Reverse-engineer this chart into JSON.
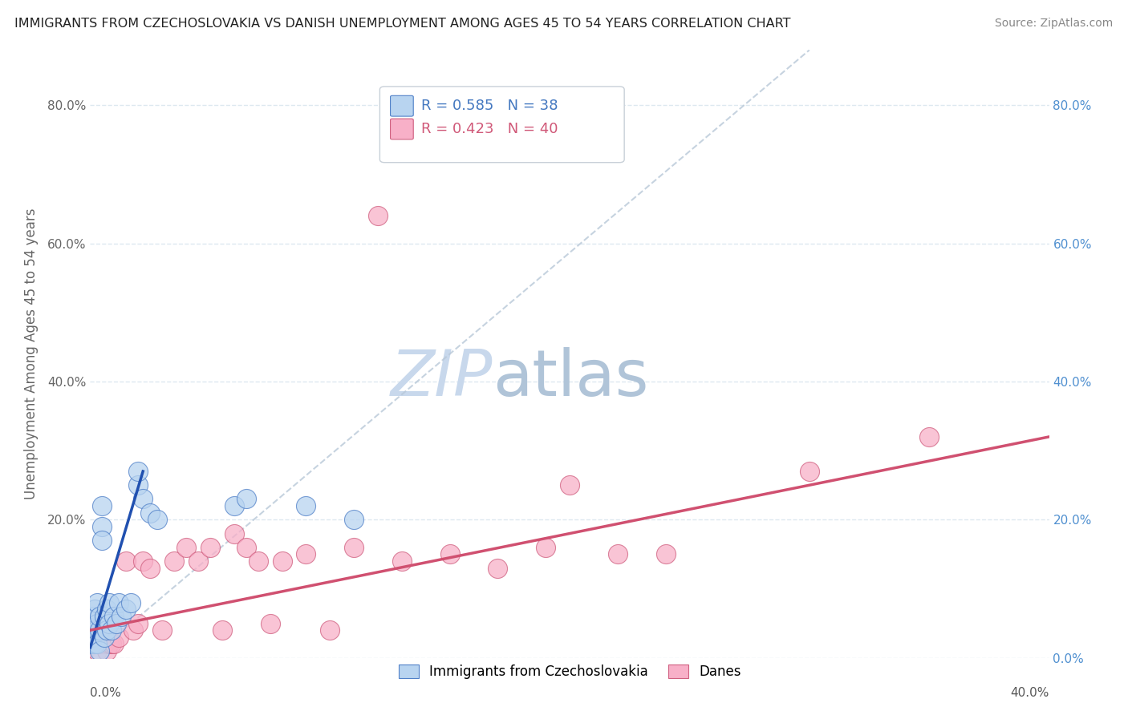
{
  "title": "IMMIGRANTS FROM CZECHOSLOVAKIA VS DANISH UNEMPLOYMENT AMONG AGES 45 TO 54 YEARS CORRELATION CHART",
  "source": "Source: ZipAtlas.com",
  "ylabel": "Unemployment Among Ages 45 to 54 years",
  "yticks_left": [
    "",
    "20.0%",
    "40.0%",
    "60.0%",
    "80.0%"
  ],
  "yticks_right": [
    "0.0%",
    "20.0%",
    "40.0%",
    "60.0%",
    "80.0%"
  ],
  "ytick_vals": [
    0.0,
    0.2,
    0.4,
    0.6,
    0.8
  ],
  "legend1_label": "Immigrants from Czechoslovakia",
  "legend2_label": "Danes",
  "r1": 0.585,
  "n1": 38,
  "r2": 0.423,
  "n2": 40,
  "color_blue_fill": "#b8d4f0",
  "color_blue_edge": "#5080c8",
  "color_blue_line": "#2050b0",
  "color_pink_fill": "#f8b0c8",
  "color_pink_edge": "#d06080",
  "color_pink_line": "#d05070",
  "color_dashed": "#b8c8d8",
  "watermark_color": "#c8d8e8",
  "background_color": "#ffffff",
  "grid_color": "#dde8f0",
  "blue_scatter_x": [
    0.0005,
    0.001,
    0.001,
    0.0015,
    0.002,
    0.002,
    0.0025,
    0.003,
    0.003,
    0.003,
    0.004,
    0.004,
    0.004,
    0.005,
    0.005,
    0.005,
    0.006,
    0.006,
    0.007,
    0.007,
    0.008,
    0.008,
    0.009,
    0.01,
    0.011,
    0.012,
    0.013,
    0.015,
    0.017,
    0.02,
    0.02,
    0.022,
    0.025,
    0.028,
    0.06,
    0.065,
    0.09,
    0.11
  ],
  "blue_scatter_y": [
    0.02,
    0.03,
    0.06,
    0.04,
    0.02,
    0.07,
    0.04,
    0.02,
    0.05,
    0.08,
    0.01,
    0.04,
    0.06,
    0.19,
    0.17,
    0.22,
    0.03,
    0.06,
    0.04,
    0.07,
    0.05,
    0.08,
    0.04,
    0.06,
    0.05,
    0.08,
    0.06,
    0.07,
    0.08,
    0.25,
    0.27,
    0.23,
    0.21,
    0.2,
    0.22,
    0.23,
    0.22,
    0.2
  ],
  "pink_scatter_x": [
    0.001,
    0.002,
    0.003,
    0.004,
    0.005,
    0.006,
    0.007,
    0.008,
    0.009,
    0.01,
    0.012,
    0.015,
    0.018,
    0.02,
    0.022,
    0.025,
    0.03,
    0.035,
    0.04,
    0.045,
    0.05,
    0.055,
    0.06,
    0.065,
    0.07,
    0.075,
    0.08,
    0.09,
    0.1,
    0.11,
    0.12,
    0.13,
    0.15,
    0.17,
    0.19,
    0.2,
    0.22,
    0.24,
    0.3,
    0.35
  ],
  "pink_scatter_y": [
    0.02,
    0.02,
    0.01,
    0.02,
    0.02,
    0.02,
    0.01,
    0.02,
    0.02,
    0.02,
    0.03,
    0.14,
    0.04,
    0.05,
    0.14,
    0.13,
    0.04,
    0.14,
    0.16,
    0.14,
    0.16,
    0.04,
    0.18,
    0.16,
    0.14,
    0.05,
    0.14,
    0.15,
    0.04,
    0.16,
    0.64,
    0.14,
    0.15,
    0.13,
    0.16,
    0.25,
    0.15,
    0.15,
    0.27,
    0.32
  ],
  "xlim": [
    0.0,
    0.4
  ],
  "ylim": [
    0.0,
    0.88
  ],
  "blue_line_x": [
    0.0,
    0.022
  ],
  "blue_line_y": [
    0.015,
    0.27
  ],
  "pink_line_x": [
    0.0,
    0.4
  ],
  "pink_line_y": [
    0.04,
    0.32
  ]
}
